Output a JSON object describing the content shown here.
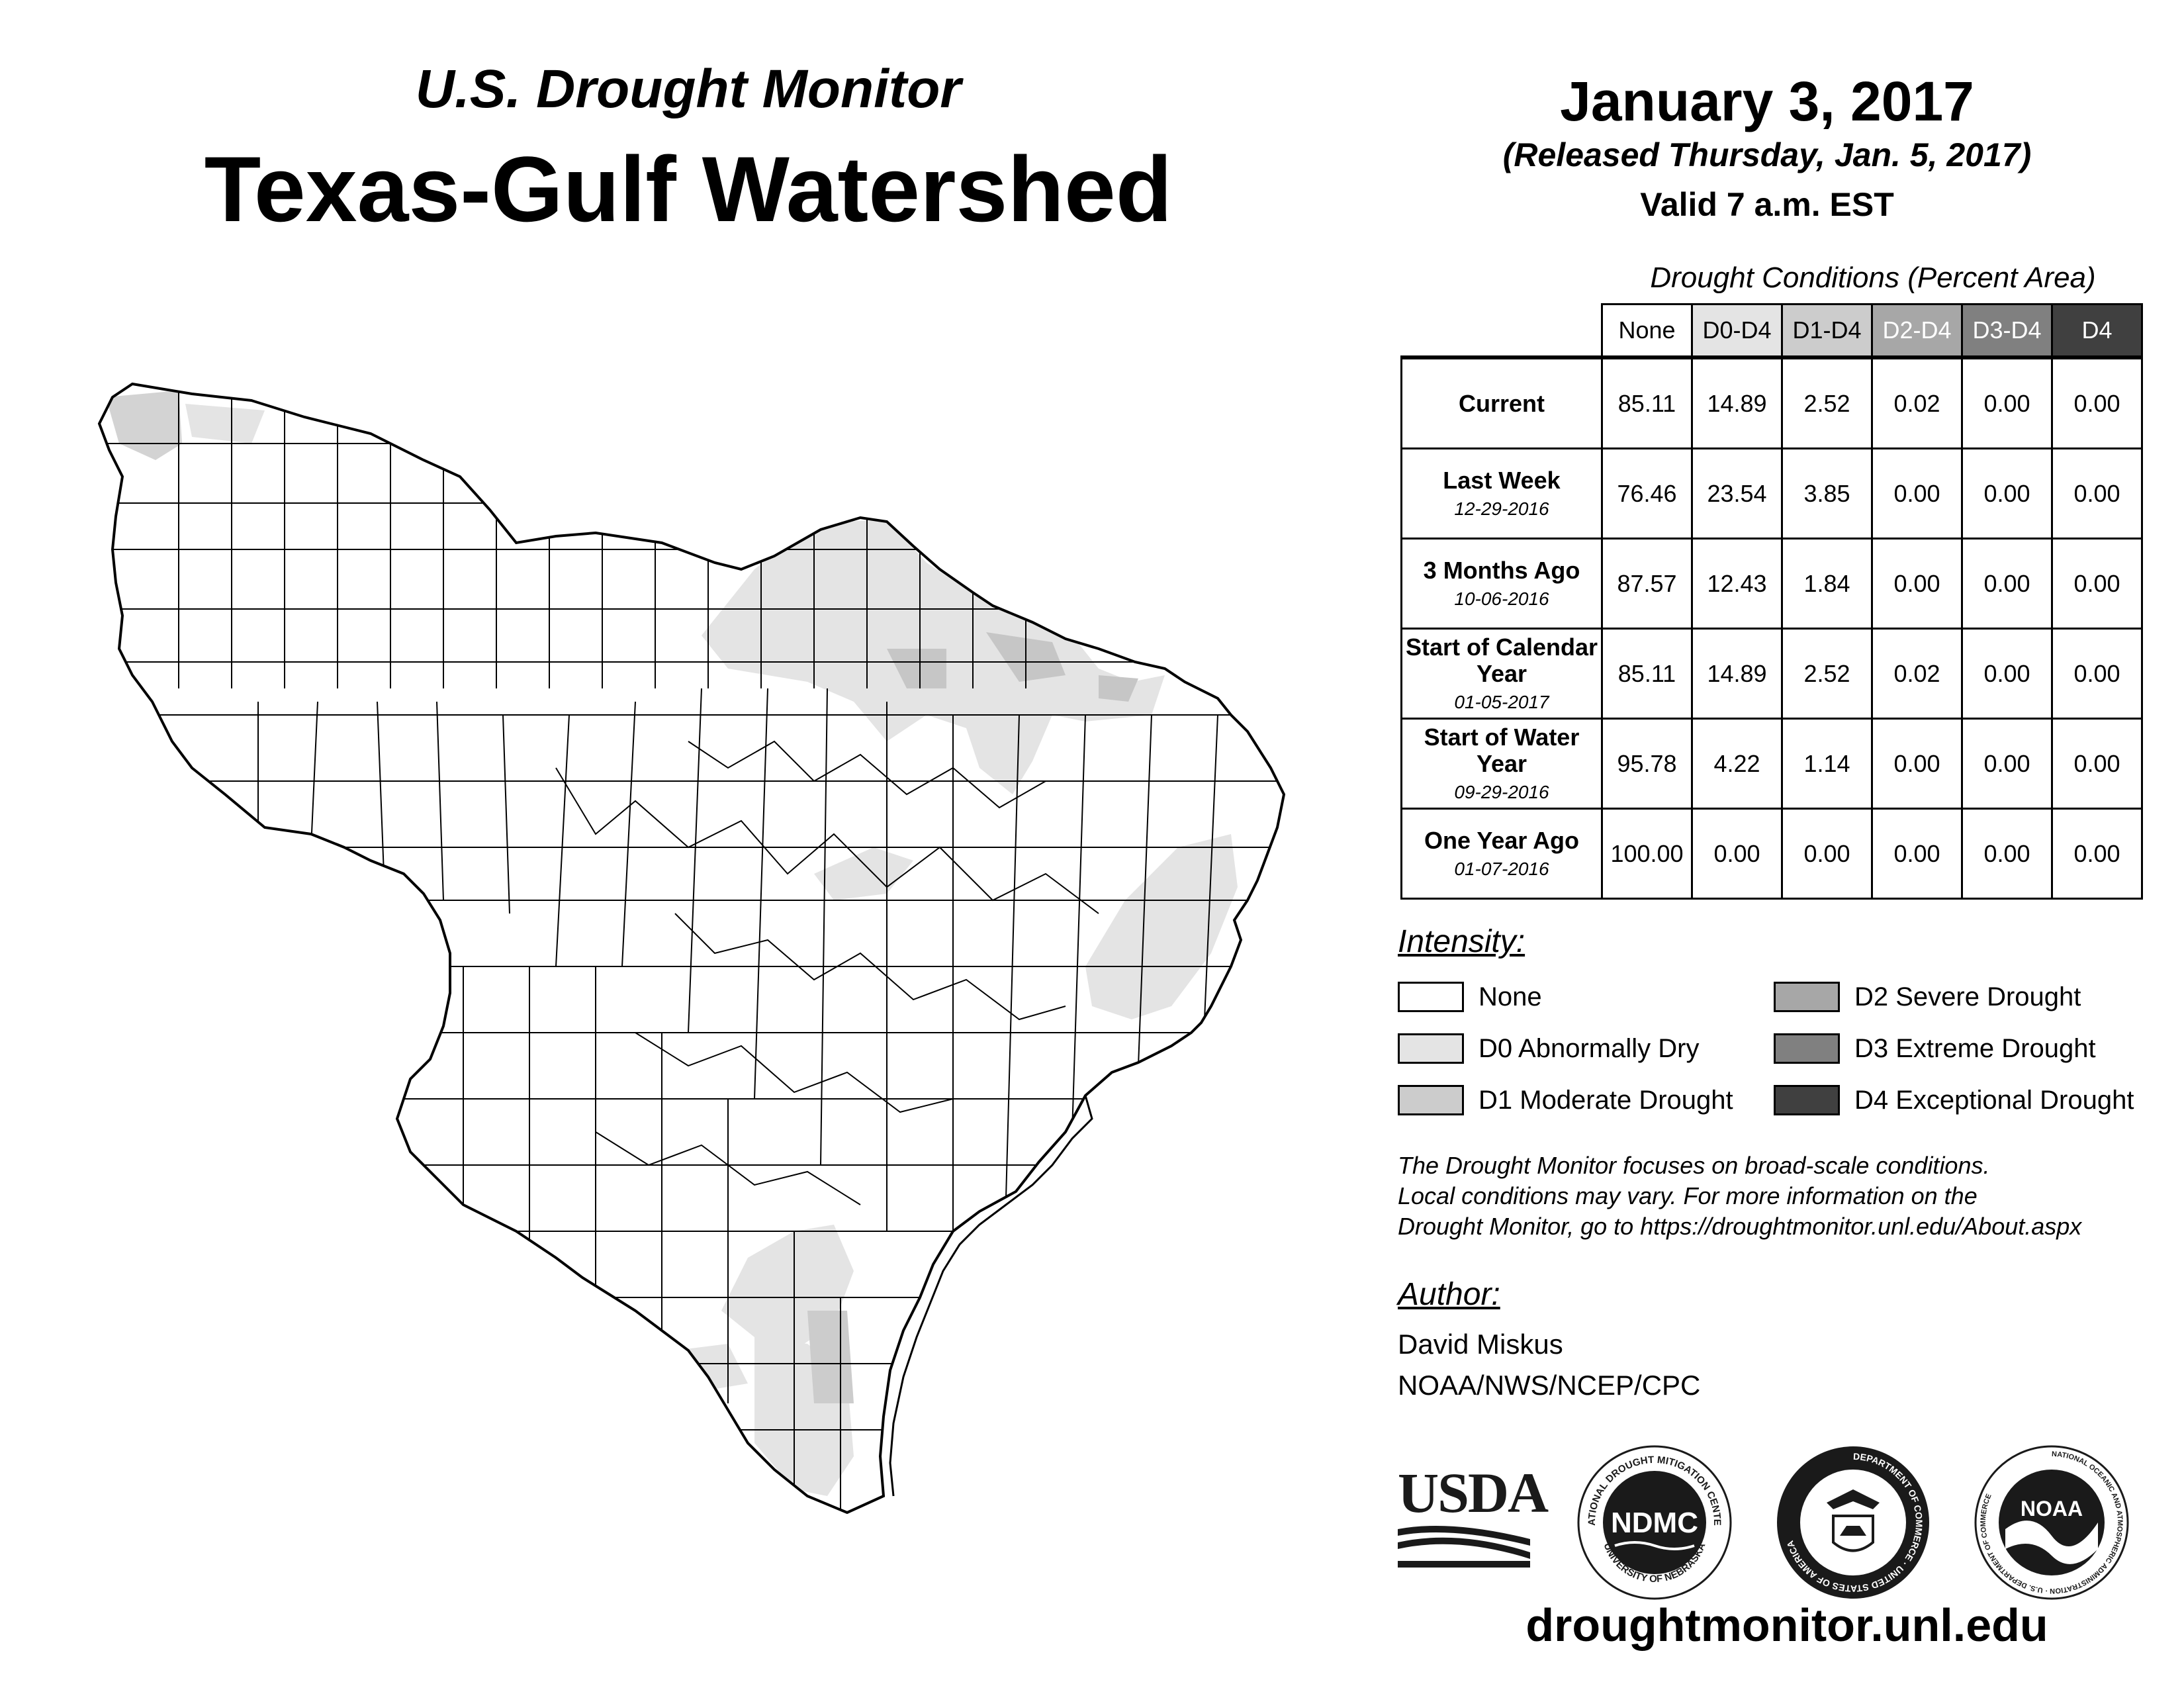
{
  "header": {
    "subtitle": "U.S. Drought Monitor",
    "title": "Texas-Gulf Watershed",
    "date": "January 3, 2017",
    "released": "(Released Thursday, Jan. 5, 2017)",
    "valid": "Valid 7 a.m. EST"
  },
  "table": {
    "caption": "Drought Conditions (Percent Area)",
    "columns": [
      "None",
      "D0-D4",
      "D1-D4",
      "D2-D4",
      "D3-D4",
      "D4"
    ],
    "rows": [
      {
        "label": "Current",
        "date": "",
        "values": [
          "85.11",
          "14.89",
          "2.52",
          "0.02",
          "0.00",
          "0.00"
        ]
      },
      {
        "label": "Last Week",
        "date": "12-29-2016",
        "values": [
          "76.46",
          "23.54",
          "3.85",
          "0.00",
          "0.00",
          "0.00"
        ]
      },
      {
        "label": "3 Months Ago",
        "date": "10-06-2016",
        "values": [
          "87.57",
          "12.43",
          "1.84",
          "0.00",
          "0.00",
          "0.00"
        ]
      },
      {
        "label": "Start of Calendar Year",
        "date": "01-05-2017",
        "values": [
          "85.11",
          "14.89",
          "2.52",
          "0.02",
          "0.00",
          "0.00"
        ]
      },
      {
        "label": "Start of Water Year",
        "date": "09-29-2016",
        "values": [
          "95.78",
          "4.22",
          "1.14",
          "0.00",
          "0.00",
          "0.00"
        ]
      },
      {
        "label": "One Year Ago",
        "date": "01-07-2016",
        "values": [
          "100.00",
          "0.00",
          "0.00",
          "0.00",
          "0.00",
          "0.00"
        ]
      }
    ]
  },
  "legend": {
    "title": "Intensity:",
    "items": [
      {
        "label": "None",
        "color": "#ffffff"
      },
      {
        "label": "D0 Abnormally Dry",
        "color": "#e4e4e4"
      },
      {
        "label": "D1 Moderate Drought",
        "color": "#cccccc"
      },
      {
        "label": "D2 Severe Drought",
        "color": "#a7a7a7"
      },
      {
        "label": "D3 Extreme Drought",
        "color": "#808080"
      },
      {
        "label": "D4 Exceptional Drought",
        "color": "#404040"
      }
    ]
  },
  "note": {
    "line1": "The Drought Monitor focuses on broad-scale conditions.",
    "line2": "Local conditions may vary. For more information on the",
    "line3": "Drought Monitor, go to https://droughtmonitor.unl.edu/About.aspx"
  },
  "author": {
    "title": "Author:",
    "name": "David Miskus",
    "org": "NOAA/NWS/NCEP/CPC"
  },
  "logos": {
    "usda": "USDA",
    "ndmc": "NDMC",
    "ndmc_ring_top": "NATIONAL DROUGHT MITIGATION CENTER",
    "ndmc_ring_bottom": "UNIVERSITY OF NEBRASKA",
    "commerce_ring": "DEPARTMENT OF COMMERCE · UNITED STATES OF AMERICA",
    "noaa": "NOAA",
    "noaa_ring": "NATIONAL OCEANIC AND ATMOSPHERIC ADMINISTRATION · U.S. DEPARTMENT OF COMMERCE"
  },
  "website": "droughtmonitor.unl.edu"
}
